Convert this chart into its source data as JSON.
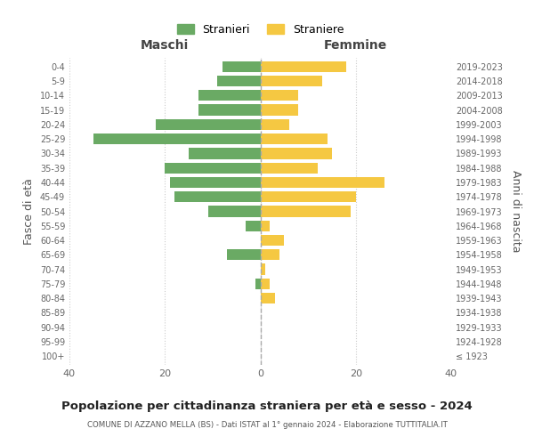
{
  "age_groups": [
    "100+",
    "95-99",
    "90-94",
    "85-89",
    "80-84",
    "75-79",
    "70-74",
    "65-69",
    "60-64",
    "55-59",
    "50-54",
    "45-49",
    "40-44",
    "35-39",
    "30-34",
    "25-29",
    "20-24",
    "15-19",
    "10-14",
    "5-9",
    "0-4"
  ],
  "birth_years": [
    "≤ 1923",
    "1924-1928",
    "1929-1933",
    "1934-1938",
    "1939-1943",
    "1944-1948",
    "1949-1953",
    "1954-1958",
    "1959-1963",
    "1964-1968",
    "1969-1973",
    "1974-1978",
    "1979-1983",
    "1984-1988",
    "1989-1993",
    "1994-1998",
    "1999-2003",
    "2004-2008",
    "2009-2013",
    "2014-2018",
    "2019-2023"
  ],
  "males": [
    0,
    0,
    0,
    0,
    0,
    1,
    0,
    7,
    0,
    3,
    11,
    18,
    19,
    20,
    15,
    35,
    22,
    13,
    13,
    9,
    8
  ],
  "females": [
    0,
    0,
    0,
    0,
    3,
    2,
    1,
    4,
    5,
    2,
    19,
    20,
    26,
    12,
    15,
    14,
    6,
    8,
    8,
    13,
    18
  ],
  "male_color": "#6aaa64",
  "female_color": "#f5c842",
  "title": "Popolazione per cittadinanza straniera per età e sesso - 2024",
  "subtitle": "COMUNE DI AZZANO MELLA (BS) - Dati ISTAT al 1° gennaio 2024 - Elaborazione TUTTITALIA.IT",
  "xlabel_left": "Maschi",
  "xlabel_right": "Femmine",
  "ylabel_left": "Fasce di età",
  "ylabel_right": "Anni di nascita",
  "legend_males": "Stranieri",
  "legend_females": "Straniere",
  "xlim": 40,
  "background_color": "#ffffff",
  "grid_color": "#cccccc"
}
